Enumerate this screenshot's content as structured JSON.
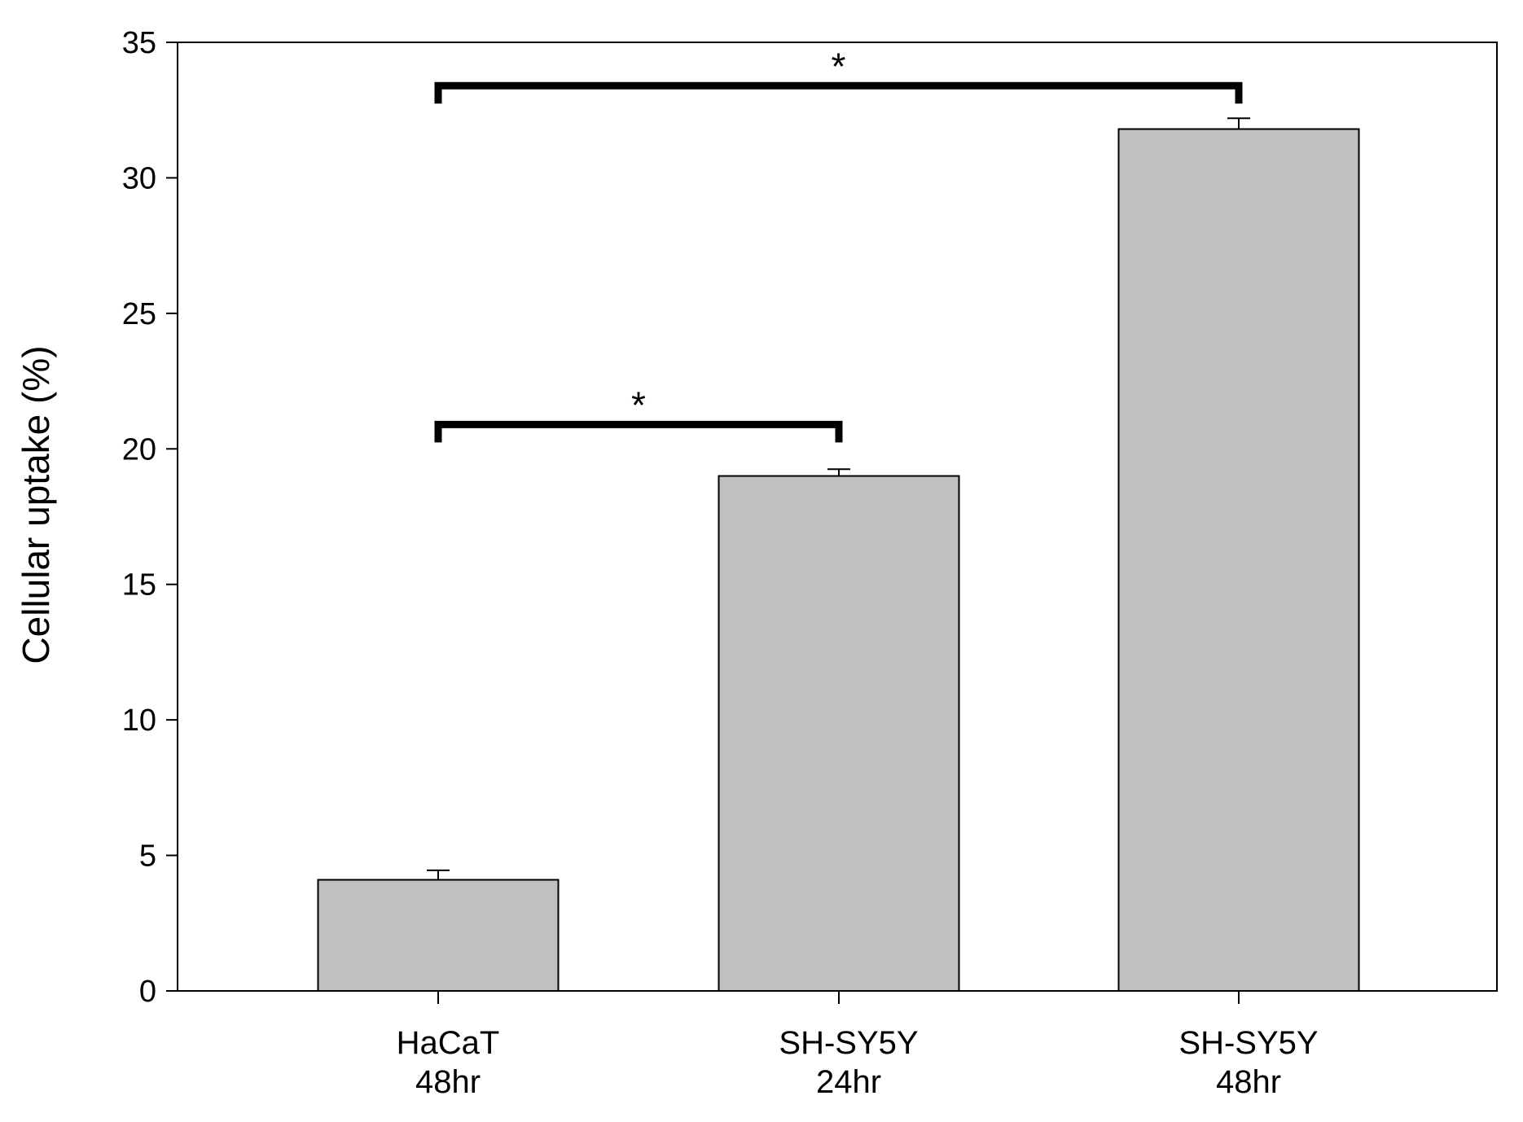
{
  "chart_data": {
    "type": "bar",
    "title": "",
    "xlabel": "",
    "ylabel": "Cellular uptake (%)",
    "ylim": [
      0,
      35
    ],
    "yticks": [
      0,
      5,
      10,
      15,
      20,
      25,
      30,
      35
    ],
    "ytick_labels": [
      "0",
      "5",
      "10",
      "15",
      "20",
      "25",
      "30",
      "35"
    ],
    "categories": [
      {
        "line1": "HaCaT",
        "line2": "48hr"
      },
      {
        "line1": "SH-SY5Y",
        "line2": "24hr"
      },
      {
        "line1": "SH-SY5Y",
        "line2": "48hr"
      }
    ],
    "values": [
      4.1,
      19.0,
      31.8
    ],
    "errors": [
      0.35,
      0.25,
      0.4
    ],
    "bar_color": "#c0c0c0",
    "grid": false,
    "significance": [
      {
        "from": 0,
        "to": 1,
        "y": 20.9,
        "label": "*"
      },
      {
        "from": 0,
        "to": 2,
        "y": 33.4,
        "label": "*"
      }
    ]
  }
}
